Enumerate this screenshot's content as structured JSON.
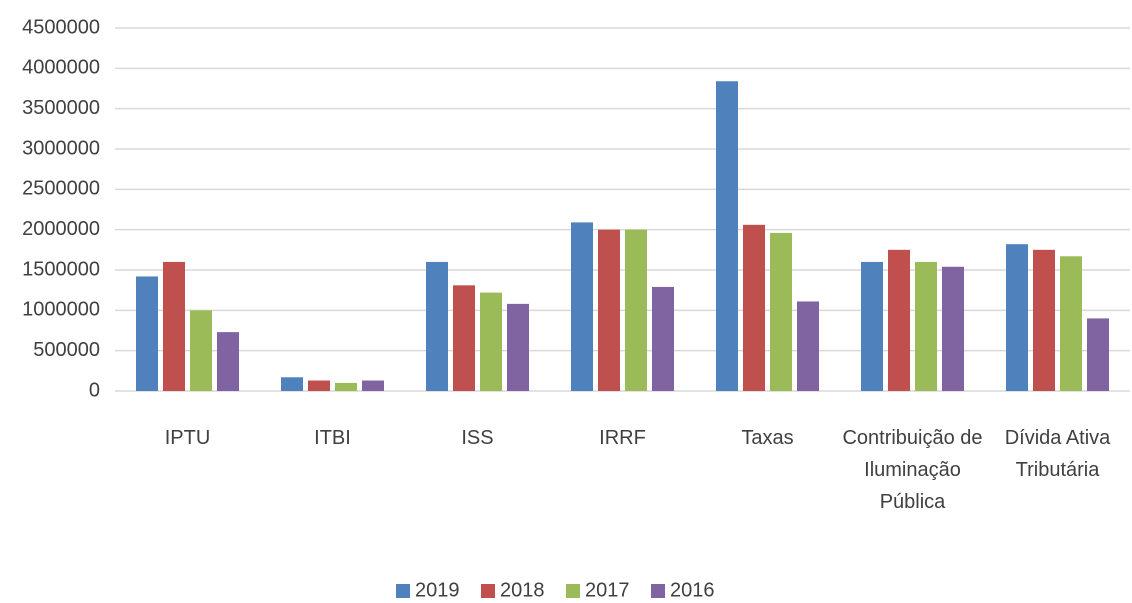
{
  "chart_data": {
    "type": "bar",
    "categories": [
      "IPTU",
      "ITBI",
      "ISS",
      "IRRF",
      "Taxas",
      "Contribuição de Iluminação Pública",
      "Dívida Ativa Tributária"
    ],
    "series": [
      {
        "name": "2019",
        "color": "#4f81bd",
        "values": [
          1420000,
          170000,
          1600000,
          2090000,
          3840000,
          1600000,
          1820000
        ]
      },
      {
        "name": "2018",
        "color": "#c0504d",
        "values": [
          1600000,
          130000,
          1310000,
          2000000,
          2060000,
          1750000,
          1750000
        ]
      },
      {
        "name": "2017",
        "color": "#9bbb59",
        "values": [
          1000000,
          100000,
          1220000,
          2000000,
          1960000,
          1600000,
          1670000
        ]
      },
      {
        "name": "2016",
        "color": "#8064a2",
        "values": [
          730000,
          130000,
          1080000,
          1290000,
          1110000,
          1540000,
          900000
        ]
      }
    ],
    "ylim": [
      0,
      4500000
    ],
    "yticks": [
      0,
      500000,
      1000000,
      1500000,
      2000000,
      2500000,
      3000000,
      3500000,
      4000000,
      4500000
    ],
    "grid": true,
    "legend": "bottom"
  }
}
